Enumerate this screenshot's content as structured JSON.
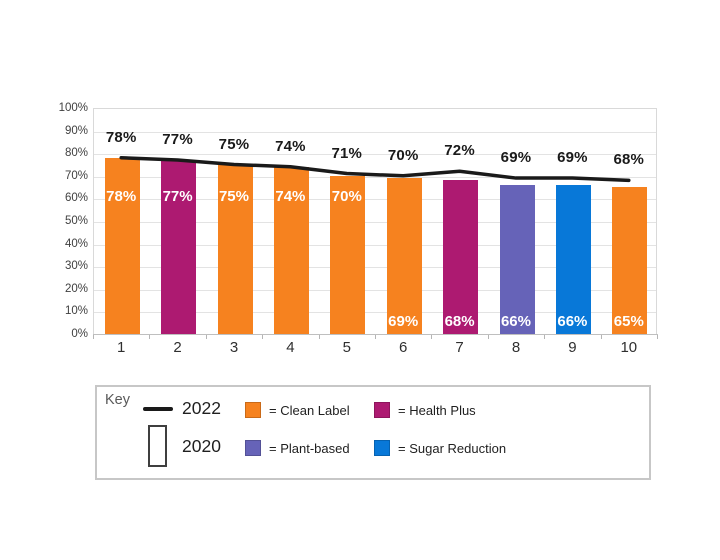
{
  "chart_data": {
    "type": "bar",
    "title": "",
    "xlabel": "",
    "ylabel": "",
    "categories": [
      "1",
      "2",
      "3",
      "4",
      "5",
      "6",
      "7",
      "8",
      "9",
      "10"
    ],
    "y_ticks": [
      "0%",
      "10%",
      "20%",
      "30%",
      "40%",
      "50%",
      "60%",
      "70%",
      "80%",
      "90%",
      "100%"
    ],
    "ylim": [
      0,
      100
    ],
    "grid": true,
    "legend_position": "bottom",
    "series": [
      {
        "name": "2020",
        "type": "bar",
        "values": [
          78,
          77,
          75,
          74,
          70,
          69,
          68,
          66,
          66,
          65
        ],
        "labels": [
          "78%",
          "77%",
          "75%",
          "74%",
          "70%",
          "69%",
          "68%",
          "66%",
          "66%",
          "65%"
        ],
        "brands": [
          "Clean Label",
          "Health Plus",
          "Clean Label",
          "Clean Label",
          "Clean Label",
          "Clean Label",
          "Health Plus",
          "Plant-based",
          "Sugar Reduction",
          "Clean Label"
        ]
      },
      {
        "name": "2022",
        "type": "line",
        "color": "#1a1a1a",
        "values": [
          78,
          77,
          75,
          74,
          71,
          70,
          72,
          69,
          69,
          68
        ],
        "labels": [
          "78%",
          "77%",
          "75%",
          "74%",
          "71%",
          "70%",
          "72%",
          "69%",
          "69%",
          "68%"
        ]
      }
    ],
    "brand_colors": {
      "Clean Label": "#f6821f",
      "Health Plus": "#ad1a71",
      "Plant-based": "#6663b8",
      "Sugar Reduction": "#0878d8"
    }
  },
  "legend": {
    "title": "Key",
    "line_entry": {
      "label": "2022",
      "color": "#1a1a1a"
    },
    "bar_entry": {
      "label": "2020"
    },
    "entries": [
      {
        "label": "= Clean Label",
        "color": "#f6821f"
      },
      {
        "label": "= Health Plus",
        "color": "#ad1a71"
      },
      {
        "label": "= Plant-based",
        "color": "#6663b8"
      },
      {
        "label": "= Sugar Reduction",
        "color": "#0878d8"
      }
    ]
  }
}
